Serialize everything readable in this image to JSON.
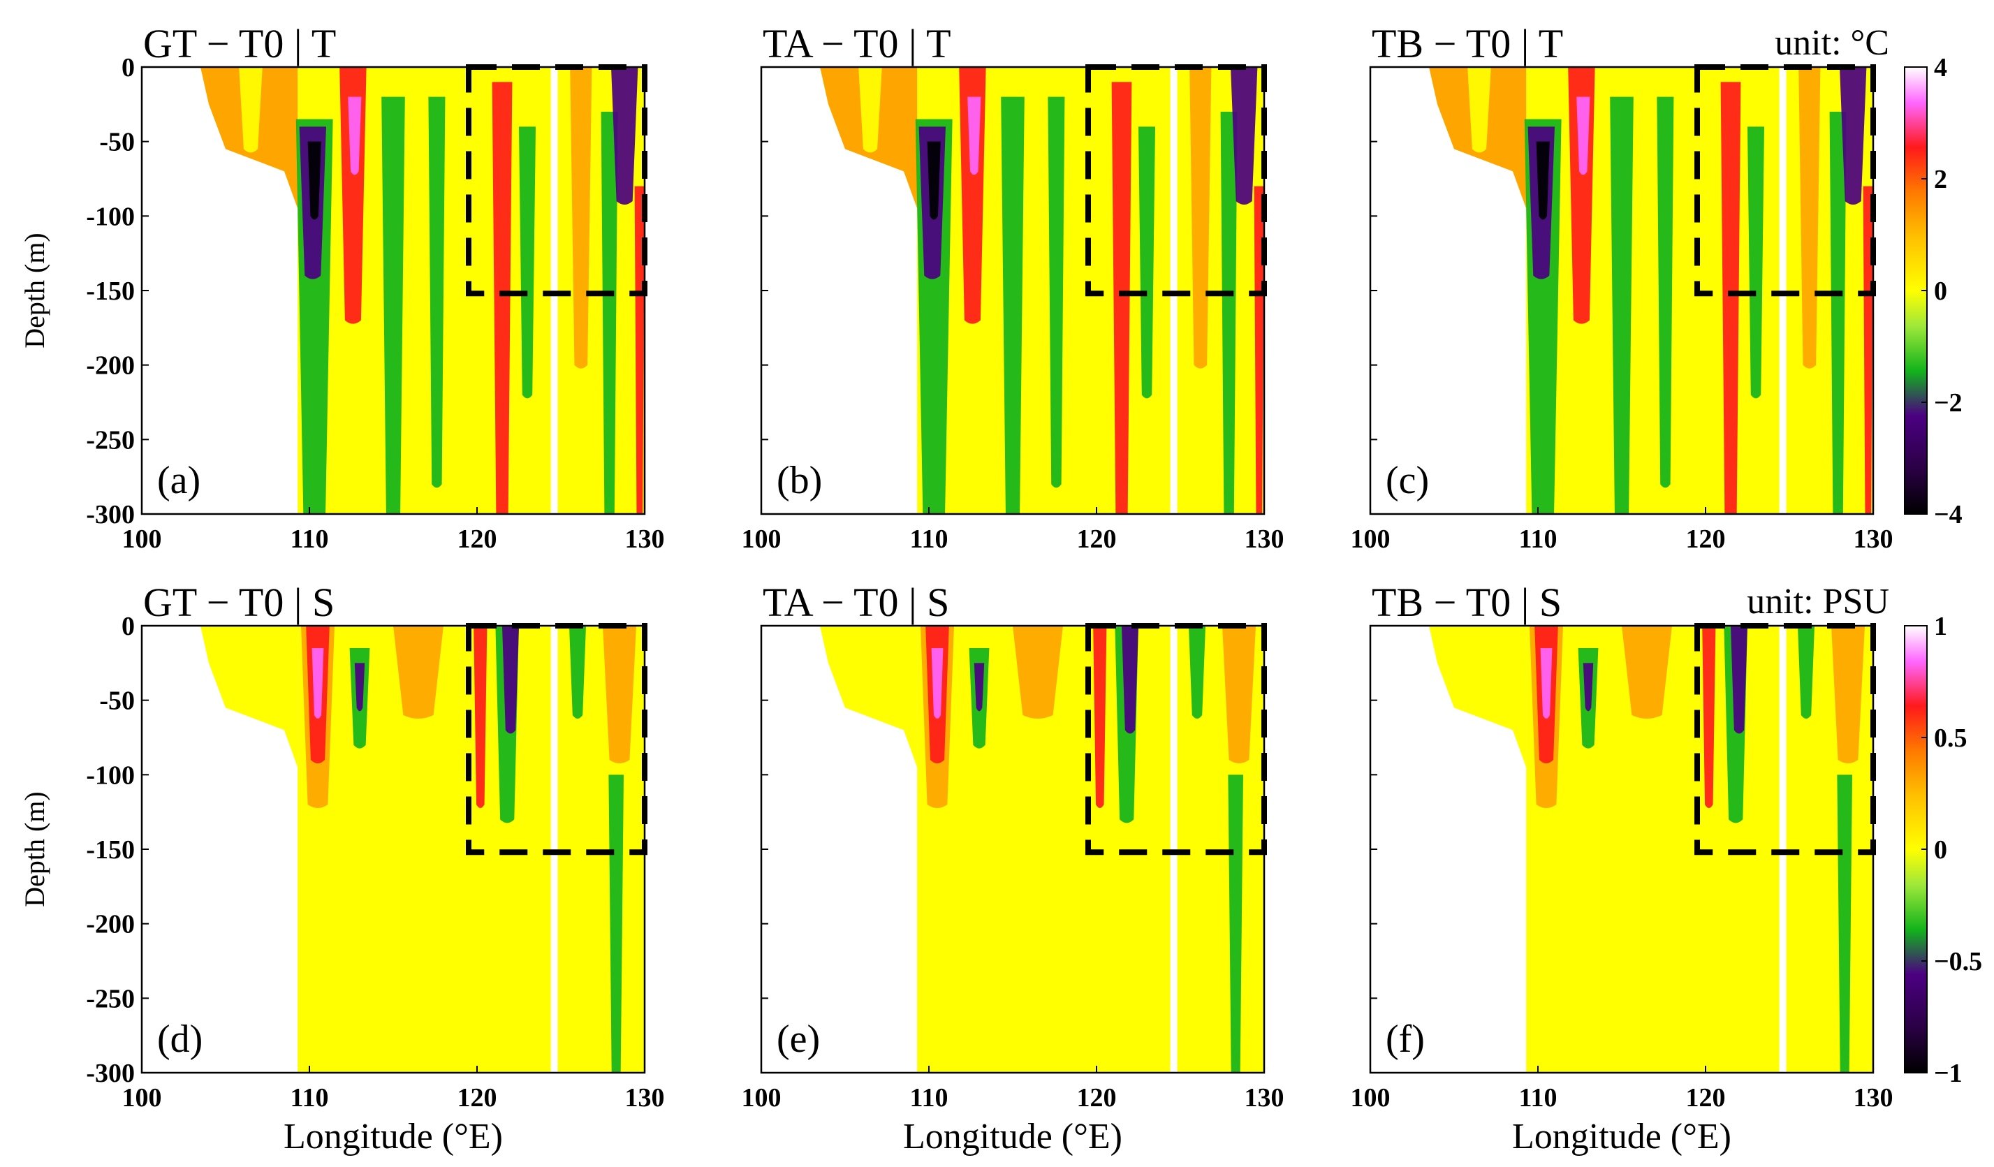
{
  "chart_data": [
    {
      "type": "heatmap",
      "panel_label": "(a)",
      "title": "GT − T0 | T",
      "variable": "T",
      "xlabel": "",
      "ylabel": "Depth (m)",
      "x_ticks": [
        "100",
        "110",
        "120",
        "130"
      ],
      "y_ticks": [
        "0",
        "-50",
        "-100",
        "-150",
        "-200",
        "-250",
        "-300"
      ],
      "xlim": [
        100,
        130
      ],
      "ylim": [
        -300,
        0
      ],
      "box": {
        "lon": [
          119.5,
          130
        ],
        "depth": [
          -152,
          0
        ]
      }
    },
    {
      "type": "heatmap",
      "panel_label": "(b)",
      "title": "TA − T0 | T",
      "variable": "T",
      "xlabel": "",
      "ylabel": "",
      "x_ticks": [
        "100",
        "110",
        "120",
        "130"
      ],
      "y_ticks": [],
      "xlim": [
        100,
        130
      ],
      "ylim": [
        -300,
        0
      ],
      "box": {
        "lon": [
          119.5,
          130
        ],
        "depth": [
          -152,
          0
        ]
      }
    },
    {
      "type": "heatmap",
      "panel_label": "(c)",
      "title": "TB − T0 | T",
      "variable": "T",
      "xlabel": "",
      "ylabel": "",
      "x_ticks": [
        "100",
        "110",
        "120",
        "130"
      ],
      "y_ticks": [],
      "xlim": [
        100,
        130
      ],
      "ylim": [
        -300,
        0
      ],
      "box": {
        "lon": [
          119.5,
          130
        ],
        "depth": [
          -152,
          0
        ]
      }
    },
    {
      "type": "heatmap",
      "panel_label": "(d)",
      "title": "GT − T0  | S",
      "variable": "S",
      "xlabel": "Longitude (°E)",
      "ylabel": "Depth (m)",
      "x_ticks": [
        "100",
        "110",
        "120",
        "130"
      ],
      "y_ticks": [
        "0",
        "-50",
        "-100",
        "-150",
        "-200",
        "-250",
        "-300"
      ],
      "xlim": [
        100,
        130
      ],
      "ylim": [
        -300,
        0
      ],
      "box": {
        "lon": [
          119.5,
          130
        ],
        "depth": [
          -152,
          0
        ]
      }
    },
    {
      "type": "heatmap",
      "panel_label": "(e)",
      "title": "TA − T0 | S",
      "variable": "S",
      "xlabel": "Longitude (°E)",
      "ylabel": "",
      "x_ticks": [
        "100",
        "110",
        "120",
        "130"
      ],
      "y_ticks": [],
      "xlim": [
        100,
        130
      ],
      "ylim": [
        -300,
        0
      ],
      "box": {
        "lon": [
          119.5,
          130
        ],
        "depth": [
          -152,
          0
        ]
      }
    },
    {
      "type": "heatmap",
      "panel_label": "(f)",
      "title": "TB − T0 | S",
      "variable": "S",
      "xlabel": "Longitude (°E)",
      "ylabel": "",
      "x_ticks": [
        "100",
        "110",
        "120",
        "130"
      ],
      "y_ticks": [],
      "xlim": [
        100,
        130
      ],
      "ylim": [
        -300,
        0
      ],
      "box": {
        "lon": [
          119.5,
          130
        ],
        "depth": [
          -152,
          0
        ]
      }
    }
  ],
  "colorbars": {
    "T": {
      "unit": "unit: °C",
      "ticks": [
        "4",
        "2",
        "0",
        "−2",
        "−4"
      ],
      "range": [
        -4,
        4
      ]
    },
    "S": {
      "unit": "unit: PSU",
      "ticks": [
        "1",
        "0.5",
        "0",
        "−0.5",
        "−1"
      ],
      "range": [
        -1,
        1
      ]
    }
  },
  "colors": {
    "black": "#000000",
    "purple": "#4b0082",
    "green": "#12b31c",
    "yellow": "#ffff00",
    "orange": "#ffa500",
    "red": "#ff1a1a",
    "pink": "#ff66ff",
    "white": "#ffffff"
  }
}
